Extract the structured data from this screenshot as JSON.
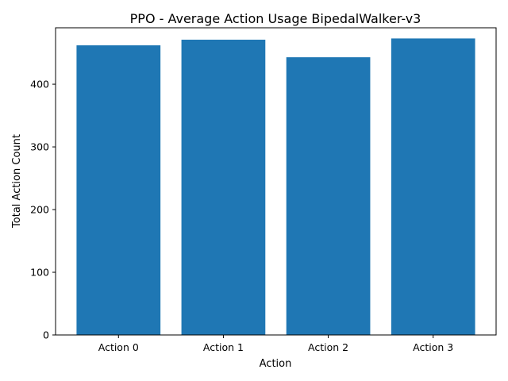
{
  "chart_data": {
    "type": "bar",
    "title": "PPO - Average Action Usage BipedalWalker-v3",
    "xlabel": "Action",
    "ylabel": "Total Action Count",
    "categories": [
      "Action 0",
      "Action 1",
      "Action 2",
      "Action 3"
    ],
    "values": [
      462,
      471,
      443,
      473
    ],
    "ylim": [
      0,
      490
    ],
    "yticks": [
      0,
      100,
      200,
      300,
      400
    ],
    "grid": false,
    "bar_color": "#1f77b4"
  }
}
